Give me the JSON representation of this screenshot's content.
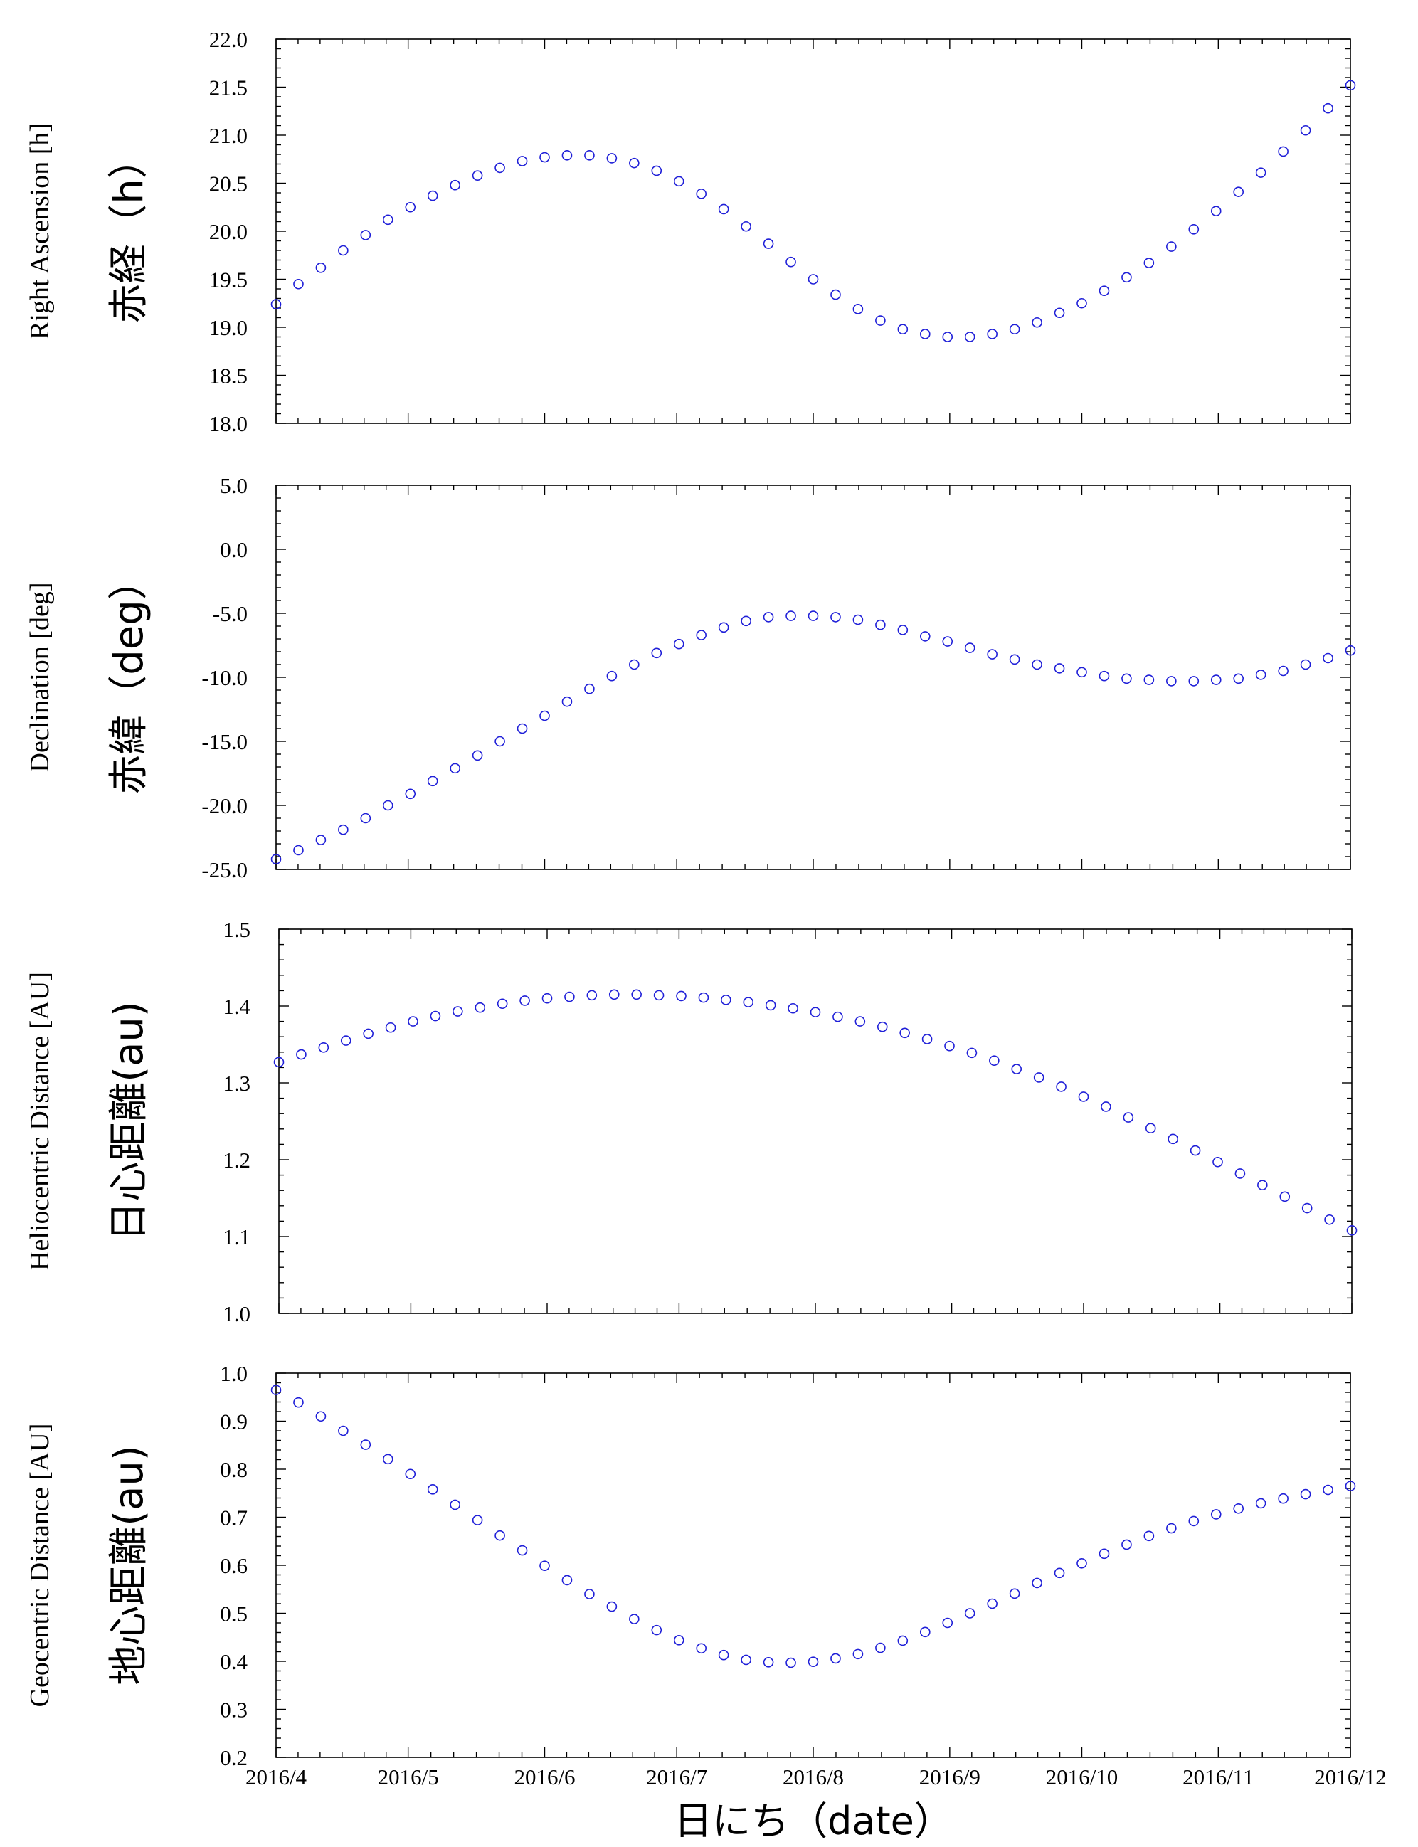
{
  "chart_data": [
    {
      "type": "scatter",
      "ylabel_en": "Right Ascension [h]",
      "ylabel_jp": "赤経（h）",
      "ylim": [
        18.0,
        22.0
      ],
      "yticks": [
        18.0,
        18.5,
        19.0,
        19.5,
        20.0,
        20.5,
        21.0,
        21.5,
        22.0
      ],
      "ytick_labels": [
        "18.0",
        "18.5",
        "19.0",
        "19.5",
        "20.0",
        "20.5",
        "21.0",
        "21.5",
        "22.0"
      ],
      "series": [
        {
          "values": [
            19.24,
            19.45,
            19.62,
            19.8,
            19.96,
            20.12,
            20.25,
            20.37,
            20.48,
            20.58,
            20.66,
            20.73,
            20.77,
            20.79,
            20.79,
            20.76,
            20.71,
            20.63,
            20.52,
            20.39,
            20.23,
            20.05,
            19.87,
            19.68,
            19.5,
            19.34,
            19.19,
            19.07,
            18.98,
            18.93,
            18.9,
            18.9,
            18.93,
            18.98,
            19.05,
            19.15,
            19.25,
            19.38,
            19.52,
            19.67,
            19.84,
            20.02,
            20.21,
            20.41,
            20.61,
            20.83,
            21.05,
            21.28,
            21.52
          ]
        }
      ]
    },
    {
      "type": "scatter",
      "ylabel_en": "Declination [deg]",
      "ylabel_jp": "赤緯（deg）",
      "ylim": [
        -25.0,
        5.0
      ],
      "yticks": [
        -25.0,
        -20.0,
        -15.0,
        -10.0,
        -5.0,
        0.0,
        5.0
      ],
      "ytick_labels": [
        "-25.0",
        "-20.0",
        "-15.0",
        "-10.0",
        "-5.0",
        "0.0",
        "5.0"
      ],
      "series": [
        {
          "values": [
            -24.2,
            -23.5,
            -22.7,
            -21.9,
            -21.0,
            -20.0,
            -19.1,
            -18.1,
            -17.1,
            -16.1,
            -15.0,
            -14.0,
            -13.0,
            -11.9,
            -10.9,
            -9.9,
            -9.0,
            -8.1,
            -7.4,
            -6.7,
            -6.1,
            -5.6,
            -5.3,
            -5.2,
            -5.2,
            -5.3,
            -5.5,
            -5.9,
            -6.3,
            -6.8,
            -7.2,
            -7.7,
            -8.2,
            -8.6,
            -9.0,
            -9.3,
            -9.6,
            -9.9,
            -10.1,
            -10.2,
            -10.3,
            -10.3,
            -10.2,
            -10.1,
            -9.8,
            -9.5,
            -9.0,
            -8.5,
            -7.9
          ]
        }
      ]
    },
    {
      "type": "scatter",
      "ylabel_en": "Heliocentric Distance [AU]",
      "ylabel_jp": "日心距離(au)",
      "ylim": [
        1.0,
        1.5
      ],
      "yticks": [
        1.0,
        1.1,
        1.2,
        1.3,
        1.4,
        1.5
      ],
      "ytick_labels": [
        "1.0",
        "1.1",
        "1.2",
        "1.3",
        "1.4",
        "1.5"
      ],
      "series": [
        {
          "values": [
            1.327,
            1.337,
            1.346,
            1.355,
            1.364,
            1.372,
            1.38,
            1.387,
            1.393,
            1.398,
            1.403,
            1.407,
            1.41,
            1.412,
            1.414,
            1.415,
            1.415,
            1.414,
            1.413,
            1.411,
            1.408,
            1.405,
            1.401,
            1.397,
            1.392,
            1.386,
            1.38,
            1.373,
            1.365,
            1.357,
            1.348,
            1.339,
            1.329,
            1.318,
            1.307,
            1.295,
            1.282,
            1.269,
            1.255,
            1.241,
            1.227,
            1.212,
            1.197,
            1.182,
            1.167,
            1.152,
            1.137,
            1.122,
            1.108
          ]
        }
      ]
    },
    {
      "type": "scatter",
      "ylabel_en": "Geocentric Distance [AU]",
      "ylabel_jp": "地心距離(au)",
      "ylim": [
        0.2,
        1.0
      ],
      "yticks": [
        0.2,
        0.3,
        0.4,
        0.5,
        0.6,
        0.7,
        0.8,
        0.9,
        1.0
      ],
      "ytick_labels": [
        "0.2",
        "0.3",
        "0.4",
        "0.5",
        "0.6",
        "0.7",
        "0.8",
        "0.9",
        "1.0"
      ],
      "xlabel": "日にち（date）",
      "xtick_labels": [
        "2016/4",
        "2016/5",
        "2016/6",
        "2016/7",
        "2016/8",
        "2016/9",
        "2016/10",
        "2016/11",
        "2016/12"
      ],
      "series": [
        {
          "values": [
            0.965,
            0.939,
            0.91,
            0.88,
            0.851,
            0.821,
            0.79,
            0.758,
            0.726,
            0.694,
            0.662,
            0.631,
            0.599,
            0.569,
            0.54,
            0.514,
            0.488,
            0.465,
            0.444,
            0.427,
            0.413,
            0.403,
            0.398,
            0.397,
            0.399,
            0.406,
            0.415,
            0.428,
            0.443,
            0.461,
            0.48,
            0.5,
            0.52,
            0.541,
            0.563,
            0.584,
            0.604,
            0.624,
            0.643,
            0.661,
            0.677,
            0.692,
            0.706,
            0.718,
            0.729,
            0.739,
            0.748,
            0.757,
            0.765
          ]
        }
      ]
    }
  ],
  "x_axis": {
    "range": [
      "2016/4/1",
      "2016/12/1"
    ],
    "tick_labels": [
      "2016/4",
      "2016/5",
      "2016/6",
      "2016/7",
      "2016/8",
      "2016/9",
      "2016/10",
      "2016/11",
      "2016/12"
    ],
    "sample_dates": [
      "2016/4/1",
      "2016/12/1"
    ]
  },
  "colors": {
    "points": "#1f1fd8",
    "axes": "#000000",
    "background": "#ffffff"
  }
}
